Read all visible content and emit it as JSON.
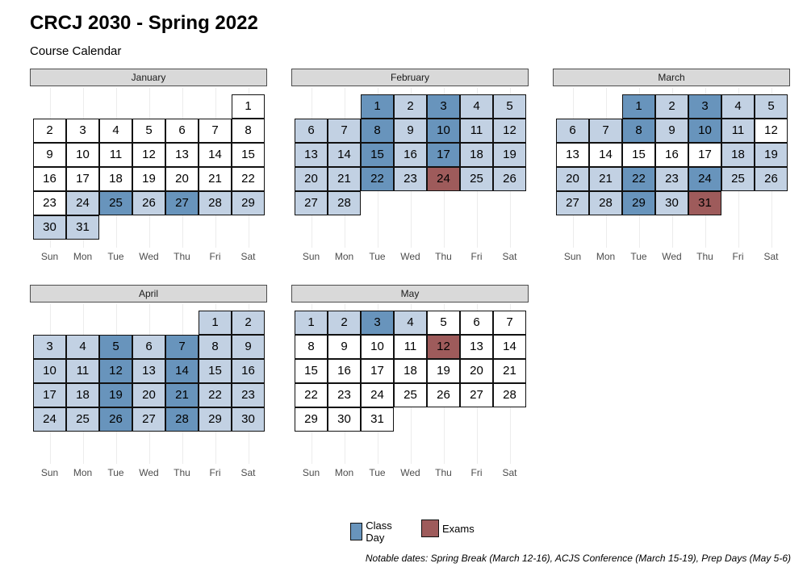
{
  "title": "CRCJ 2030 - Spring 2022",
  "subtitle": "Course Calendar",
  "caption": "Notable dates: Spring Break (March 12-16), ACJS Conference (March 15-19), Prep Days (May 5-6)",
  "colors": {
    "none": "#ffffff",
    "semester": "#c2d1e3",
    "class_day": "#6894bc",
    "exams": "#9e5b5b"
  },
  "legend": [
    {
      "label": "Class Day",
      "color": "#6894bc",
      "key": "class_day"
    },
    {
      "label": "Exams",
      "color": "#9e5b5b",
      "key": "exams"
    }
  ],
  "chart_data": {
    "type": "heatmap",
    "weekdays": [
      "Sun",
      "Mon",
      "Tue",
      "Wed",
      "Thu",
      "Fri",
      "Sat"
    ],
    "months": [
      {
        "name": "January",
        "first_weekday": 6,
        "days": 31,
        "class_days": [
          25,
          27
        ],
        "exams": [],
        "semester_days": [
          24,
          26,
          28,
          29,
          30,
          31
        ]
      },
      {
        "name": "February",
        "first_weekday": 2,
        "days": 28,
        "class_days": [
          1,
          3,
          8,
          10,
          15,
          17,
          22
        ],
        "exams": [
          24
        ],
        "semester_days": [
          2,
          4,
          5,
          6,
          7,
          9,
          11,
          12,
          13,
          14,
          16,
          18,
          19,
          20,
          21,
          23,
          25,
          26,
          27,
          28
        ]
      },
      {
        "name": "March",
        "first_weekday": 2,
        "days": 31,
        "class_days": [
          1,
          3,
          8,
          10,
          22,
          24,
          29
        ],
        "exams": [
          31
        ],
        "semester_days": [
          2,
          4,
          5,
          6,
          7,
          9,
          11,
          18,
          19,
          20,
          21,
          23,
          25,
          26,
          27,
          28,
          30
        ]
      },
      {
        "name": "April",
        "first_weekday": 5,
        "days": 30,
        "class_days": [
          5,
          7,
          12,
          14,
          19,
          21,
          26,
          28
        ],
        "exams": [],
        "semester_days": [
          1,
          2,
          3,
          4,
          6,
          8,
          9,
          10,
          11,
          13,
          15,
          16,
          17,
          18,
          20,
          22,
          23,
          24,
          25,
          27,
          29,
          30
        ]
      },
      {
        "name": "May",
        "first_weekday": 0,
        "days": 31,
        "class_days": [
          3
        ],
        "exams": [
          12
        ],
        "semester_days": [
          1,
          2,
          4
        ]
      }
    ]
  }
}
